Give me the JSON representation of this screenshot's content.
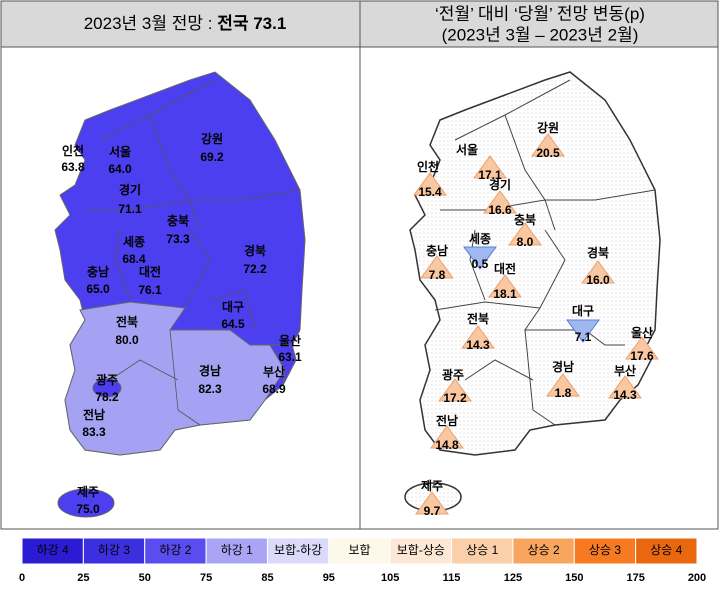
{
  "left_panel": {
    "title": "2023년 3월 전망 :",
    "title_emphasis": "전국 73.1",
    "regions": [
      {
        "name": "인천",
        "value": "63.8"
      },
      {
        "name": "서울",
        "value": "64.0"
      },
      {
        "name": "강원",
        "value": "69.2"
      },
      {
        "name": "경기",
        "value": "71.1"
      },
      {
        "name": "충북",
        "value": "73.3"
      },
      {
        "name": "세종",
        "value": "68.4"
      },
      {
        "name": "충남",
        "value": "65.0"
      },
      {
        "name": "대전",
        "value": "76.1"
      },
      {
        "name": "경북",
        "value": "72.2"
      },
      {
        "name": "대구",
        "value": "64.5"
      },
      {
        "name": "울산",
        "value": "63.1"
      },
      {
        "name": "전북",
        "value": "80.0"
      },
      {
        "name": "부산",
        "value": "68.9"
      },
      {
        "name": "광주",
        "value": "78.2"
      },
      {
        "name": "경남",
        "value": "82.3"
      },
      {
        "name": "전남",
        "value": "83.3"
      },
      {
        "name": "제주",
        "value": "75.0"
      }
    ]
  },
  "right_panel": {
    "title_line1": "‘전월’ 대비 ‘당월’ 전망 변동(p)",
    "title_line2": "(2023년 3월 – 2023년 2월)",
    "regions": [
      {
        "name": "서울",
        "value": "17.1"
      },
      {
        "name": "강원",
        "value": "20.5"
      },
      {
        "name": "인천",
        "value": "15.4"
      },
      {
        "name": "경기",
        "value": "16.6"
      },
      {
        "name": "충북",
        "value": "8.0"
      },
      {
        "name": "세종",
        "value": "0.5"
      },
      {
        "name": "충남",
        "value": "7.8"
      },
      {
        "name": "대전",
        "value": "18.1"
      },
      {
        "name": "경북",
        "value": "16.0"
      },
      {
        "name": "전북",
        "value": "14.3"
      },
      {
        "name": "대구",
        "value": "7.1"
      },
      {
        "name": "울산",
        "value": "17.6"
      },
      {
        "name": "경남",
        "value": "1.8"
      },
      {
        "name": "부산",
        "value": "14.3"
      },
      {
        "name": "광주",
        "value": "17.2"
      },
      {
        "name": "전남",
        "value": "14.8"
      },
      {
        "name": "제주",
        "value": "9.7"
      }
    ]
  },
  "legend": {
    "labels": [
      "하강 4",
      "하강 3",
      "하강 2",
      "하강 1",
      "보합-하강",
      "보합",
      "보합-상승",
      "상승 1",
      "상승 2",
      "상승 3",
      "상승 4"
    ],
    "colors": [
      "#2b1bd2",
      "#3c2fe0",
      "#5a4df0",
      "#a9a4f4",
      "#dcdafb",
      "#fdf8ea",
      "#fde8d6",
      "#fbcfa9",
      "#f8a65e",
      "#f57a22",
      "#e9680f"
    ],
    "ticks": [
      0,
      25,
      50,
      75,
      85,
      95,
      105,
      115,
      125,
      150,
      175,
      200
    ]
  }
}
